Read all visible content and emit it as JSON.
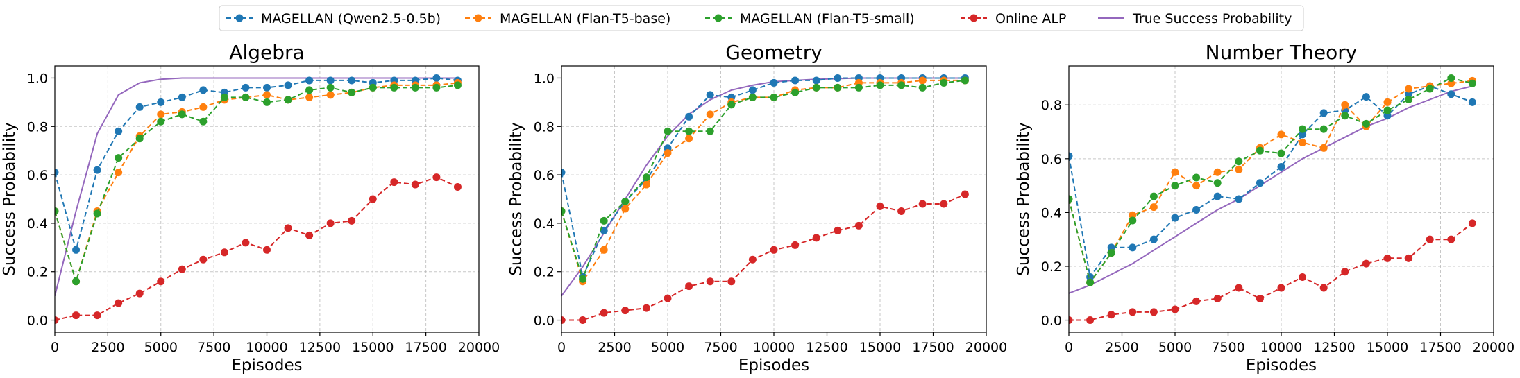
{
  "chart_data": {
    "type": "line",
    "legend": {
      "placement": "top-center",
      "entries": [
        {
          "name": "MAGELLAN (Qwen2.5-0.5b)",
          "color": "#1f77b4",
          "style": "dashed-marker"
        },
        {
          "name": "MAGELLAN (Flan-T5-base)",
          "color": "#ff7f0e",
          "style": "dashed-marker"
        },
        {
          "name": "MAGELLAN (Flan-T5-small)",
          "color": "#2ca02c",
          "style": "dashed-marker"
        },
        {
          "name": "Online ALP",
          "color": "#d62728",
          "style": "dashed-marker"
        },
        {
          "name": "True Success Probability",
          "color": "#9467bd",
          "style": "solid"
        }
      ]
    },
    "panels": [
      {
        "title": "Algebra",
        "xlabel": "Episodes",
        "ylabel": "Success Probability",
        "xlim": [
          0,
          20000
        ],
        "ylim": [
          -0.05,
          1.05
        ],
        "grid": true,
        "xticks": [
          0,
          2500,
          5000,
          7500,
          10000,
          12500,
          15000,
          17500,
          20000
        ],
        "xtick_labels": [
          "0",
          "2500",
          "5000",
          "7500",
          "10000",
          "12500",
          "15000",
          "17500",
          "20000"
        ],
        "yticks": [
          0.0,
          0.2,
          0.4,
          0.6,
          0.8,
          1.0
        ],
        "ytick_labels": [
          "0.0",
          "0.2",
          "0.4",
          "0.6",
          "0.8",
          "1.0"
        ],
        "x": [
          0,
          1000,
          2000,
          3000,
          4000,
          5000,
          6000,
          7000,
          8000,
          9000,
          10000,
          11000,
          12000,
          13000,
          14000,
          15000,
          16000,
          17000,
          18000,
          19000
        ],
        "series": [
          {
            "name": "MAGELLAN (Qwen2.5-0.5b)",
            "values": [
              0.61,
              0.29,
              0.62,
              0.78,
              0.88,
              0.9,
              0.92,
              0.95,
              0.94,
              0.96,
              0.96,
              0.97,
              0.99,
              0.99,
              0.99,
              0.98,
              0.99,
              0.99,
              1.0,
              0.99
            ]
          },
          {
            "name": "MAGELLAN (Flan-T5-base)",
            "values": [
              0.45,
              0.16,
              0.45,
              0.61,
              0.76,
              0.85,
              0.86,
              0.88,
              0.91,
              0.92,
              0.93,
              0.91,
              0.92,
              0.93,
              0.94,
              0.96,
              0.97,
              0.97,
              0.97,
              0.98
            ]
          },
          {
            "name": "MAGELLAN (Flan-T5-small)",
            "values": [
              0.45,
              0.16,
              0.44,
              0.67,
              0.75,
              0.82,
              0.85,
              0.82,
              0.92,
              0.92,
              0.9,
              0.91,
              0.95,
              0.96,
              0.94,
              0.96,
              0.96,
              0.96,
              0.96,
              0.97
            ]
          },
          {
            "name": "Online ALP",
            "values": [
              0.0,
              0.02,
              0.02,
              0.07,
              0.11,
              0.16,
              0.21,
              0.25,
              0.28,
              0.32,
              0.29,
              0.38,
              0.35,
              0.4,
              0.41,
              0.5,
              0.57,
              0.56,
              0.59,
              0.55
            ]
          }
        ],
        "true_curve": {
          "name": "True Success Probability",
          "x": [
            0,
            1000,
            2000,
            3000,
            4000,
            5000,
            6000,
            7000,
            8000,
            9000,
            10000,
            12000,
            14000,
            16000,
            18000,
            19000
          ],
          "values": [
            0.1,
            0.45,
            0.77,
            0.93,
            0.98,
            0.995,
            1.0,
            1.0,
            1.0,
            1.0,
            1.0,
            1.0,
            1.0,
            1.0,
            1.0,
            1.0
          ]
        }
      },
      {
        "title": "Geometry",
        "xlabel": "Episodes",
        "ylabel": "Success Probability",
        "xlim": [
          0,
          20000
        ],
        "ylim": [
          -0.05,
          1.05
        ],
        "grid": true,
        "xticks": [
          0,
          2500,
          5000,
          7500,
          10000,
          12500,
          15000,
          17500,
          20000
        ],
        "xtick_labels": [
          "0",
          "2500",
          "5000",
          "7500",
          "10000",
          "12500",
          "15000",
          "17500",
          "20000"
        ],
        "yticks": [
          0.0,
          0.2,
          0.4,
          0.6,
          0.8,
          1.0
        ],
        "ytick_labels": [
          "0.0",
          "0.2",
          "0.4",
          "0.6",
          "0.8",
          "1.0"
        ],
        "x": [
          0,
          1000,
          2000,
          3000,
          4000,
          5000,
          6000,
          7000,
          8000,
          9000,
          10000,
          11000,
          12000,
          13000,
          14000,
          15000,
          16000,
          17000,
          18000,
          19000
        ],
        "series": [
          {
            "name": "MAGELLAN (Qwen2.5-0.5b)",
            "values": [
              0.61,
              0.18,
              0.37,
              0.49,
              0.58,
              0.71,
              0.84,
              0.93,
              0.92,
              0.95,
              0.98,
              0.99,
              0.99,
              1.0,
              1.0,
              1.0,
              1.0,
              1.0,
              1.0,
              1.0
            ]
          },
          {
            "name": "MAGELLAN (Flan-T5-base)",
            "values": [
              0.45,
              0.16,
              0.29,
              0.46,
              0.56,
              0.69,
              0.75,
              0.85,
              0.9,
              0.92,
              0.92,
              0.95,
              0.96,
              0.96,
              0.98,
              0.98,
              0.98,
              0.99,
              0.99,
              0.99
            ]
          },
          {
            "name": "MAGELLAN (Flan-T5-small)",
            "values": [
              0.45,
              0.17,
              0.41,
              0.49,
              0.59,
              0.78,
              0.78,
              0.78,
              0.89,
              0.92,
              0.92,
              0.94,
              0.96,
              0.96,
              0.96,
              0.97,
              0.97,
              0.96,
              0.98,
              0.99
            ]
          },
          {
            "name": "Online ALP",
            "values": [
              0.0,
              0.0,
              0.03,
              0.04,
              0.05,
              0.09,
              0.14,
              0.16,
              0.16,
              0.25,
              0.29,
              0.31,
              0.34,
              0.37,
              0.39,
              0.47,
              0.45,
              0.48,
              0.48,
              0.52
            ]
          }
        ],
        "true_curve": {
          "name": "True Success Probability",
          "x": [
            0,
            1000,
            2000,
            3000,
            4000,
            5000,
            6000,
            7000,
            8000,
            9000,
            10000,
            11000,
            12000,
            14000,
            16000,
            19000
          ],
          "values": [
            0.1,
            0.22,
            0.36,
            0.5,
            0.64,
            0.76,
            0.85,
            0.91,
            0.95,
            0.97,
            0.985,
            0.99,
            0.995,
            1.0,
            1.0,
            1.0
          ]
        }
      },
      {
        "title": "Number Theory",
        "xlabel": "Episodes",
        "ylabel": "Success Probability",
        "xlim": [
          0,
          20000
        ],
        "ylim": [
          -0.045,
          0.945
        ],
        "grid": true,
        "xticks": [
          0,
          2500,
          5000,
          7500,
          10000,
          12500,
          15000,
          17500,
          20000
        ],
        "xtick_labels": [
          "0",
          "2500",
          "5000",
          "7500",
          "10000",
          "12500",
          "15000",
          "17500",
          "20000"
        ],
        "yticks": [
          0.0,
          0.2,
          0.4,
          0.6,
          0.8
        ],
        "ytick_labels": [
          "0.0",
          "0.2",
          "0.4",
          "0.6",
          "0.8"
        ],
        "x": [
          0,
          1000,
          2000,
          3000,
          4000,
          5000,
          6000,
          7000,
          8000,
          9000,
          10000,
          11000,
          12000,
          13000,
          14000,
          15000,
          16000,
          17000,
          18000,
          19000
        ],
        "series": [
          {
            "name": "MAGELLAN (Qwen2.5-0.5b)",
            "values": [
              0.61,
              0.16,
              0.27,
              0.27,
              0.3,
              0.38,
              0.41,
              0.46,
              0.45,
              0.51,
              0.57,
              0.69,
              0.77,
              0.78,
              0.83,
              0.76,
              0.84,
              0.87,
              0.84,
              0.81
            ]
          },
          {
            "name": "MAGELLAN (Flan-T5-base)",
            "values": [
              0.45,
              0.14,
              0.25,
              0.39,
              0.42,
              0.55,
              0.5,
              0.55,
              0.56,
              0.64,
              0.69,
              0.66,
              0.64,
              0.8,
              0.72,
              0.81,
              0.86,
              0.87,
              0.88,
              0.89
            ]
          },
          {
            "name": "MAGELLAN (Flan-T5-small)",
            "values": [
              0.45,
              0.14,
              0.25,
              0.37,
              0.46,
              0.5,
              0.53,
              0.51,
              0.59,
              0.63,
              0.62,
              0.71,
              0.71,
              0.76,
              0.73,
              0.78,
              0.82,
              0.86,
              0.9,
              0.88
            ]
          },
          {
            "name": "Online ALP",
            "values": [
              0.0,
              0.0,
              0.02,
              0.03,
              0.03,
              0.04,
              0.07,
              0.08,
              0.12,
              0.08,
              0.12,
              0.16,
              0.12,
              0.18,
              0.21,
              0.23,
              0.23,
              0.3,
              0.3,
              0.36
            ]
          }
        ],
        "true_curve": {
          "name": "True Success Probability",
          "x": [
            0,
            1000,
            2000,
            3000,
            4000,
            5000,
            6000,
            7000,
            8000,
            9000,
            10000,
            11000,
            12000,
            13000,
            14000,
            15000,
            16000,
            17000,
            18000,
            19000
          ],
          "values": [
            0.1,
            0.13,
            0.17,
            0.21,
            0.26,
            0.31,
            0.36,
            0.41,
            0.45,
            0.5,
            0.55,
            0.6,
            0.64,
            0.68,
            0.72,
            0.75,
            0.79,
            0.82,
            0.85,
            0.87
          ]
        }
      }
    ]
  }
}
